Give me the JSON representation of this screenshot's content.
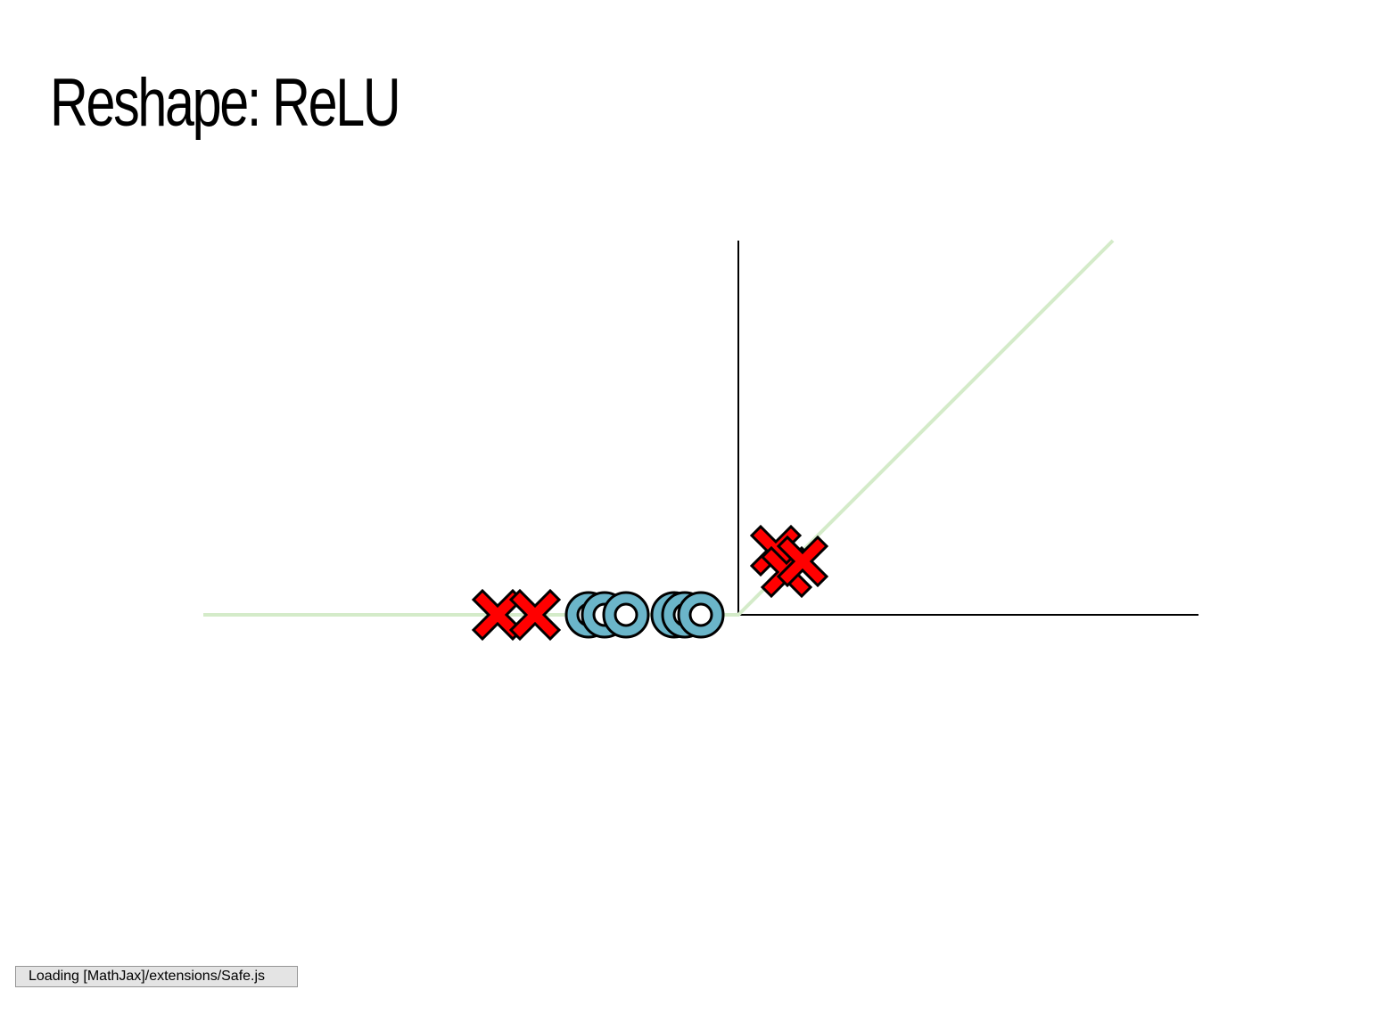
{
  "slide": {
    "title": "Reshape: ReLU"
  },
  "status": {
    "message": "Loading [MathJax]/extensions/Safe.js"
  },
  "colors": {
    "relu_line": "#d4ebc9",
    "axis": "#000000",
    "cross_fill": "#ff0000",
    "circle_fill": "#6bb5c9",
    "outline": "#000000"
  },
  "chart_data": {
    "type": "scatter",
    "xlim": [
      -1.0,
      1.0
    ],
    "ylim": [
      -0.75,
      0.75
    ],
    "line": {
      "x": [
        -1.0,
        0.0,
        0.7
      ],
      "y": [
        0.0,
        0.0,
        0.7
      ]
    },
    "series": [
      {
        "marker": "cross",
        "points": [
          {
            "x": -0.45,
            "y": 0.0
          },
          {
            "x": -0.38,
            "y": 0.0
          },
          {
            "x": 0.07,
            "y": 0.12
          },
          {
            "x": 0.09,
            "y": 0.08
          },
          {
            "x": 0.12,
            "y": 0.1
          }
        ]
      },
      {
        "marker": "circle",
        "points": [
          {
            "x": -0.28,
            "y": 0.0
          },
          {
            "x": -0.25,
            "y": 0.0
          },
          {
            "x": -0.21,
            "y": 0.0
          },
          {
            "x": -0.12,
            "y": 0.0
          },
          {
            "x": -0.1,
            "y": 0.0
          },
          {
            "x": -0.07,
            "y": 0.0
          }
        ]
      }
    ]
  }
}
